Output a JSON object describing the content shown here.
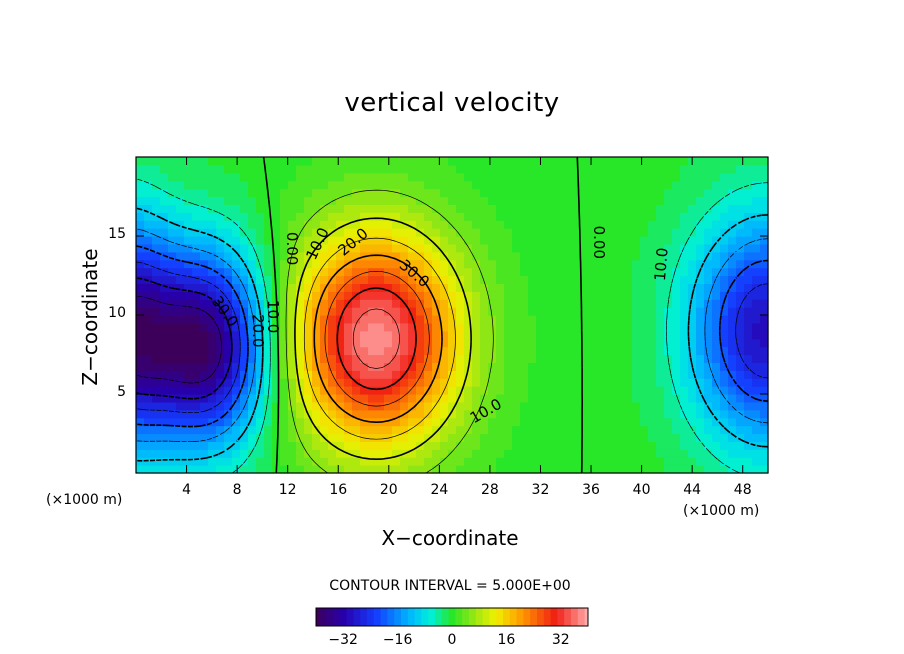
{
  "chart_data": {
    "type": "contour",
    "title": "vertical velocity",
    "xlabel": "X−coordinate",
    "ylabel": "Z−coordinate",
    "x_unit_label_left": "(×1000 m)",
    "x_unit_label_right": "(×1000 m)",
    "xlim": [
      0,
      50
    ],
    "ylim": [
      0,
      20
    ],
    "x_ticks": [
      "4",
      "8",
      "12",
      "16",
      "20",
      "24",
      "28",
      "32",
      "36",
      "40",
      "44",
      "48"
    ],
    "x_tick_values": [
      4,
      8,
      12,
      16,
      20,
      24,
      28,
      32,
      36,
      40,
      44,
      48
    ],
    "y_ticks": [
      "5",
      "10",
      "15"
    ],
    "y_tick_values": [
      5,
      10,
      15
    ],
    "contour_interval_text": "CONTOUR INTERVAL = 5.000E+00",
    "contour_interval": 5.0,
    "colorbar": {
      "range": [
        -40,
        40
      ],
      "ticks": [
        "−32",
        "−16",
        "0",
        "16",
        "32"
      ],
      "tick_values": [
        -32,
        -16,
        0,
        16,
        32
      ]
    },
    "features": [
      {
        "kind": "max",
        "x": 19,
        "z": 8.5,
        "value": 38
      },
      {
        "kind": "min",
        "x": 5.5,
        "z": 8,
        "value": -38
      },
      {
        "kind": "min",
        "x": 50,
        "z": 9,
        "value": -30
      }
    ],
    "contour_labels": [
      {
        "text": "0.00",
        "x": 12.3,
        "z": 14.2,
        "angle": 90
      },
      {
        "text": "10.0",
        "x": 14.4,
        "z": 14.5,
        "angle": -65
      },
      {
        "text": "20.0",
        "x": 17.2,
        "z": 14.6,
        "angle": -40
      },
      {
        "text": "30.0",
        "x": 22.0,
        "z": 12.6,
        "angle": 40
      },
      {
        "text": "10.0",
        "x": 27.7,
        "z": 3.9,
        "angle": -30
      },
      {
        "text": "0.00",
        "x": 36.6,
        "z": 14.6,
        "angle": 90
      },
      {
        "text": "10.0",
        "x": 41.6,
        "z": 13.2,
        "angle": -85
      },
      {
        "text": "30.0",
        "x": 7.0,
        "z": 10.2,
        "angle": 55
      },
      {
        "text": "20.0",
        "x": 9.6,
        "z": 9.0,
        "angle": 90
      },
      {
        "text": "10.0",
        "x": 10.8,
        "z": 9.9,
        "angle": 90
      }
    ]
  }
}
